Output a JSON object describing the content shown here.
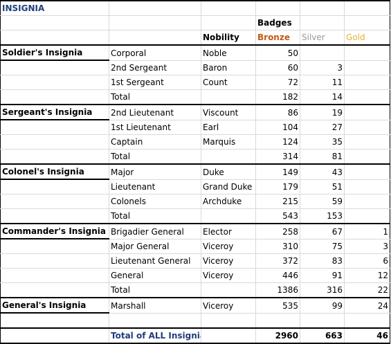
{
  "title": "INSIGNIA",
  "header": {
    "badges": "Badges",
    "nobility": "Nobility",
    "bronze": "Bronze",
    "silver": "Silver",
    "gold": "Gold"
  },
  "colors": {
    "title_blue": "#1f3e7a",
    "bronze": "#c55a11",
    "silver": "#999999",
    "gold": "#e6b030"
  },
  "groups": [
    {
      "name": "Soldier's Insignia",
      "rows": [
        {
          "rank": "Corporal",
          "nobility": "Noble",
          "bronze": "50",
          "silver": "",
          "gold": ""
        },
        {
          "rank": "2nd Sergeant",
          "nobility": "Baron",
          "bronze": "60",
          "silver": "3",
          "gold": ""
        },
        {
          "rank": "1st Sergeant",
          "nobility": "Count",
          "bronze": "72",
          "silver": "11",
          "gold": ""
        }
      ],
      "total": {
        "label": "Total",
        "bronze": "182",
        "silver": "14",
        "gold": ""
      }
    },
    {
      "name": "Sergeant's Insignia",
      "rows": [
        {
          "rank": "2nd Lieutenant",
          "nobility": "Viscount",
          "bronze": "86",
          "silver": "19",
          "gold": ""
        },
        {
          "rank": "1st Lieutenant",
          "nobility": "Earl",
          "bronze": "104",
          "silver": "27",
          "gold": ""
        },
        {
          "rank": "Captain",
          "nobility": "Marquis",
          "bronze": "124",
          "silver": "35",
          "gold": ""
        }
      ],
      "total": {
        "label": "Total",
        "bronze": "314",
        "silver": "81",
        "gold": ""
      }
    },
    {
      "name": "Colonel's Insignia",
      "rows": [
        {
          "rank": "Major",
          "nobility": "Duke",
          "bronze": "149",
          "silver": "43",
          "gold": ""
        },
        {
          "rank": "Lieutenant",
          "nobility": "Grand Duke",
          "bronze": "179",
          "silver": "51",
          "gold": ""
        },
        {
          "rank": "Colonels",
          "nobility": "Archduke",
          "bronze": "215",
          "silver": "59",
          "gold": ""
        }
      ],
      "total": {
        "label": "Total",
        "bronze": "543",
        "silver": "153",
        "gold": ""
      }
    },
    {
      "name": "Commander's Insignia",
      "rows": [
        {
          "rank": "Brigadier General",
          "nobility": "Elector",
          "bronze": "258",
          "silver": "67",
          "gold": "1"
        },
        {
          "rank": "Major General",
          "nobility": "Viceroy",
          "bronze": "310",
          "silver": "75",
          "gold": "3"
        },
        {
          "rank": "Lieutenant General",
          "nobility": "Viceroy",
          "bronze": "372",
          "silver": "83",
          "gold": "6"
        },
        {
          "rank": "General",
          "nobility": "Viceroy",
          "bronze": "446",
          "silver": "91",
          "gold": "12"
        }
      ],
      "total": {
        "label": "Total",
        "bronze": "1386",
        "silver": "316",
        "gold": "22"
      }
    },
    {
      "name": "General's Insignia",
      "rows": [
        {
          "rank": "Marshall",
          "nobility": "Viceroy",
          "bronze": "535",
          "silver": "99",
          "gold": "24"
        }
      ],
      "total": null
    }
  ],
  "grand_total": {
    "label": "Total of ALL Insignia",
    "bronze": "2960",
    "silver": "663",
    "gold": "46"
  }
}
